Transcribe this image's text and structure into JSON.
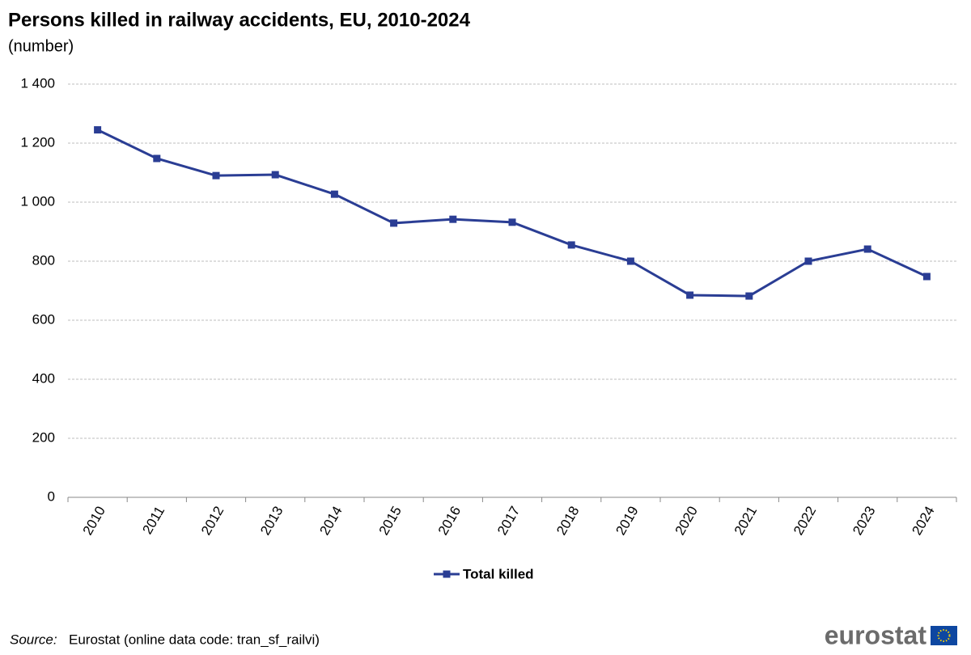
{
  "chart_data": {
    "type": "line",
    "title": "Persons killed in railway accidents, EU, 2010-2024",
    "subtitle": "(number)",
    "categories": [
      "2010",
      "2011",
      "2012",
      "2013",
      "2014",
      "2015",
      "2016",
      "2017",
      "2018",
      "2019",
      "2020",
      "2021",
      "2022",
      "2023",
      "2024"
    ],
    "series": [
      {
        "name": "Total killed",
        "color": "#2a3d94",
        "values": [
          1245,
          1148,
          1090,
          1093,
          1027,
          929,
          942,
          932,
          855,
          800,
          685,
          682,
          800,
          841,
          748
        ]
      }
    ],
    "ylim": [
      0,
      1400
    ],
    "yticks": [
      0,
      200,
      400,
      600,
      800,
      {
        "value": 1000,
        "label": "1 000"
      },
      {
        "value": 1200,
        "label": "1 200"
      },
      {
        "value": 1400,
        "label": "1 400"
      }
    ],
    "grid": true,
    "legend": "bottom",
    "source_label": "Source:",
    "source_text": "Eurostat (online data code: tran_sf_railvi)",
    "logo": "eurostat"
  }
}
